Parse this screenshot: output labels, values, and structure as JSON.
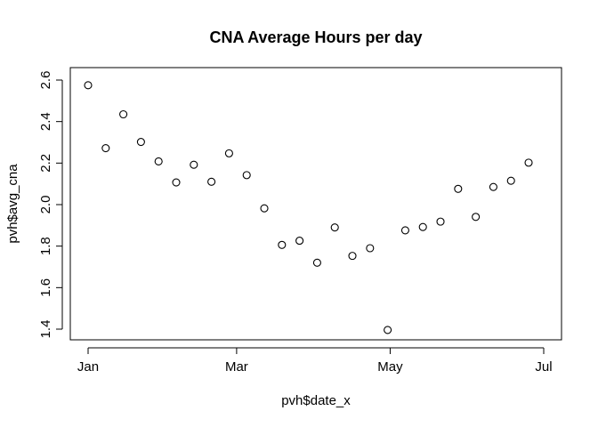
{
  "chart_data": {
    "type": "scatter",
    "title": "CNA Average Hours per day",
    "xlabel": "pvh$date_x",
    "ylabel": "pvh$avg_cna",
    "xlim": [
      "2017-01-01",
      "2017-07-01"
    ],
    "ylim": [
      1.4,
      2.6
    ],
    "x_ticks": [
      "Jan",
      "Mar",
      "May",
      "Jul"
    ],
    "y_ticks": [
      "1.4",
      "1.6",
      "1.8",
      "2.0",
      "2.2",
      "2.4",
      "2.6"
    ],
    "grid": false,
    "marker": "open-circle",
    "points": [
      {
        "x": "2017-01-01",
        "y": 2.575
      },
      {
        "x": "2017-01-08",
        "y": 2.272
      },
      {
        "x": "2017-01-15",
        "y": 2.435
      },
      {
        "x": "2017-01-22",
        "y": 2.302
      },
      {
        "x": "2017-01-29",
        "y": 2.208
      },
      {
        "x": "2017-02-05",
        "y": 2.107
      },
      {
        "x": "2017-02-12",
        "y": 2.192
      },
      {
        "x": "2017-02-19",
        "y": 2.11
      },
      {
        "x": "2017-02-26",
        "y": 2.247
      },
      {
        "x": "2017-03-05",
        "y": 2.142
      },
      {
        "x": "2017-03-12",
        "y": 1.982
      },
      {
        "x": "2017-03-19",
        "y": 1.806
      },
      {
        "x": "2017-03-26",
        "y": 1.826
      },
      {
        "x": "2017-04-02",
        "y": 1.72
      },
      {
        "x": "2017-04-09",
        "y": 1.89
      },
      {
        "x": "2017-04-16",
        "y": 1.753
      },
      {
        "x": "2017-04-23",
        "y": 1.79
      },
      {
        "x": "2017-04-30",
        "y": 1.396
      },
      {
        "x": "2017-05-07",
        "y": 1.876
      },
      {
        "x": "2017-05-14",
        "y": 1.892
      },
      {
        "x": "2017-05-21",
        "y": 1.918
      },
      {
        "x": "2017-05-28",
        "y": 2.076
      },
      {
        "x": "2017-06-04",
        "y": 1.941
      },
      {
        "x": "2017-06-11",
        "y": 2.085
      },
      {
        "x": "2017-06-18",
        "y": 2.115
      },
      {
        "x": "2017-06-25",
        "y": 2.202
      }
    ]
  },
  "colors": {
    "background": "#ffffff",
    "foreground": "#000000"
  }
}
